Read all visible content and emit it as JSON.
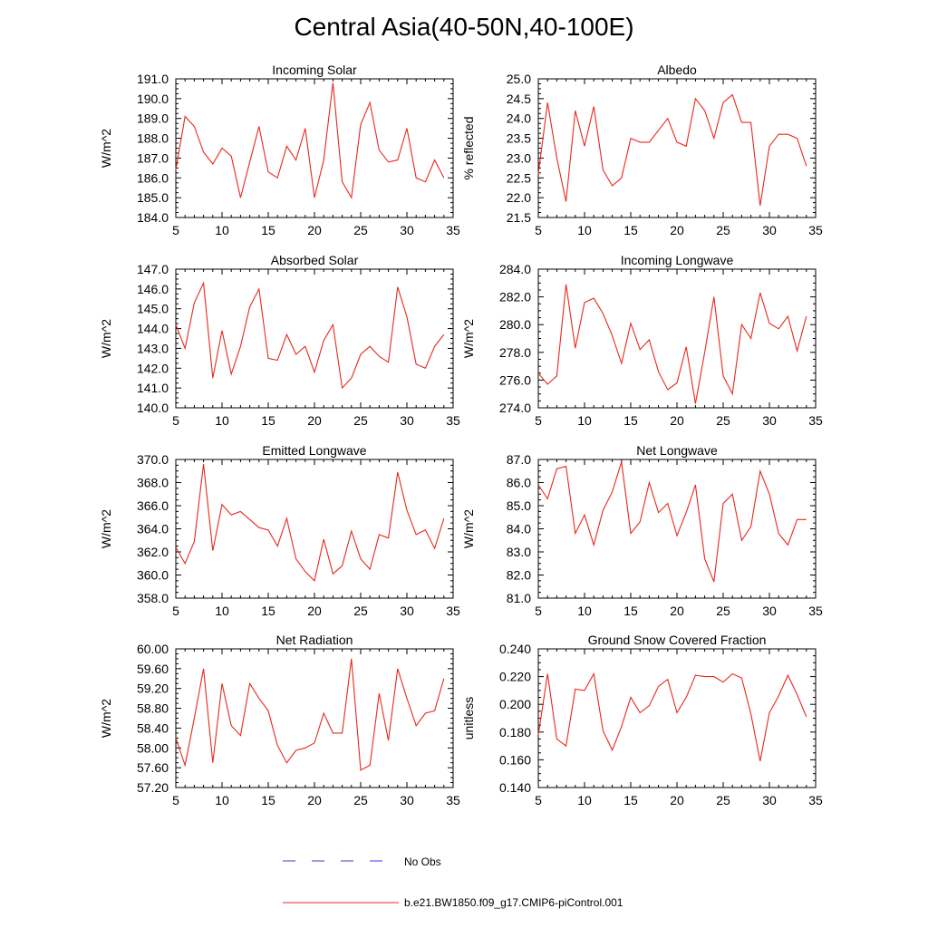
{
  "page": {
    "title": "Central Asia(40-50N,40-100E)"
  },
  "legend": [
    {
      "label": "No Obs",
      "color": "#3b3bd6",
      "style": "dashed"
    },
    {
      "label": "b.e21.BW1850.f09_g17.CMIP6-piControl.001",
      "color": "#e8281e",
      "style": "solid"
    }
  ],
  "chart_data": [
    {
      "type": "line",
      "title": "Incoming Solar",
      "ylabel": "W/m^2",
      "xlim": [
        5,
        35
      ],
      "xticks": [
        5,
        10,
        15,
        20,
        25,
        30,
        35
      ],
      "ylim": [
        184.0,
        191.0
      ],
      "yticks": [
        "184.0",
        "185.0",
        "186.0",
        "187.0",
        "188.0",
        "189.0",
        "190.0",
        "191.0"
      ],
      "series": [
        {
          "color": "#e8281e",
          "x": [
            5,
            6,
            7,
            8,
            9,
            10,
            11,
            12,
            13,
            14,
            15,
            16,
            17,
            18,
            19,
            20,
            21,
            22,
            23,
            24,
            25,
            26,
            27,
            28,
            29,
            30,
            31,
            32,
            33,
            34
          ],
          "y": [
            186.4,
            189.1,
            188.6,
            187.3,
            186.7,
            187.5,
            187.1,
            185.0,
            186.8,
            188.6,
            186.3,
            186.0,
            187.6,
            186.9,
            188.5,
            185.0,
            186.9,
            190.8,
            185.8,
            185.0,
            188.7,
            189.8,
            187.4,
            186.8,
            186.9,
            188.5,
            186.0,
            185.8,
            186.9,
            186.0
          ]
        }
      ]
    },
    {
      "type": "line",
      "title": "Albedo",
      "ylabel": "% reflected",
      "xlim": [
        5,
        35
      ],
      "xticks": [
        5,
        10,
        15,
        20,
        25,
        30,
        35
      ],
      "ylim": [
        21.5,
        25.0
      ],
      "yticks": [
        "21.5",
        "22.0",
        "22.5",
        "23.0",
        "23.5",
        "24.0",
        "24.5",
        "25.0"
      ],
      "series": [
        {
          "color": "#e8281e",
          "x": [
            5,
            6,
            7,
            8,
            9,
            10,
            11,
            12,
            13,
            14,
            15,
            16,
            17,
            18,
            19,
            20,
            21,
            22,
            23,
            24,
            25,
            26,
            27,
            28,
            29,
            30,
            31,
            32,
            33,
            34
          ],
          "y": [
            22.6,
            24.4,
            23.0,
            21.9,
            24.2,
            23.3,
            24.3,
            22.7,
            22.3,
            22.5,
            23.5,
            23.4,
            23.4,
            23.7,
            24.0,
            23.4,
            23.3,
            24.5,
            24.2,
            23.5,
            24.4,
            24.6,
            23.9,
            23.9,
            21.8,
            23.3,
            23.6,
            23.6,
            23.5,
            22.8
          ]
        }
      ]
    },
    {
      "type": "line",
      "title": "Absorbed Solar",
      "ylabel": "W/m^2",
      "xlim": [
        5,
        35
      ],
      "xticks": [
        5,
        10,
        15,
        20,
        25,
        30,
        35
      ],
      "ylim": [
        140.0,
        147.0
      ],
      "yticks": [
        "140.0",
        "141.0",
        "142.0",
        "143.0",
        "144.0",
        "145.0",
        "146.0",
        "147.0"
      ],
      "series": [
        {
          "color": "#e8281e",
          "x": [
            5,
            6,
            7,
            8,
            9,
            10,
            11,
            12,
            13,
            14,
            15,
            16,
            17,
            18,
            19,
            20,
            21,
            22,
            23,
            24,
            25,
            26,
            27,
            28,
            29,
            30,
            31,
            32,
            33,
            34
          ],
          "y": [
            144.2,
            143.0,
            145.3,
            146.3,
            141.5,
            143.9,
            141.7,
            143.1,
            145.1,
            146.0,
            142.5,
            142.4,
            143.7,
            142.7,
            143.1,
            141.8,
            143.4,
            144.2,
            141.0,
            141.5,
            142.7,
            143.1,
            142.6,
            142.3,
            146.1,
            144.6,
            142.2,
            142.0,
            143.1,
            143.7
          ]
        }
      ]
    },
    {
      "type": "line",
      "title": "Incoming Longwave",
      "ylabel": "W/m^2",
      "xlim": [
        5,
        35
      ],
      "xticks": [
        5,
        10,
        15,
        20,
        25,
        30,
        35
      ],
      "ylim": [
        274.0,
        284.0
      ],
      "yticks": [
        "274.0",
        "276.0",
        "278.0",
        "280.0",
        "282.0",
        "284.0"
      ],
      "series": [
        {
          "color": "#e8281e",
          "x": [
            5,
            6,
            7,
            8,
            9,
            10,
            11,
            12,
            13,
            14,
            15,
            16,
            17,
            18,
            19,
            20,
            21,
            22,
            23,
            24,
            25,
            26,
            27,
            28,
            29,
            30,
            31,
            32,
            33,
            34
          ],
          "y": [
            276.5,
            275.7,
            276.3,
            282.9,
            278.3,
            281.6,
            281.9,
            280.8,
            279.2,
            277.2,
            280.1,
            278.2,
            278.9,
            276.6,
            275.3,
            275.8,
            278.4,
            274.3,
            278.0,
            282.0,
            276.3,
            275.0,
            280.0,
            279.0,
            282.3,
            280.1,
            279.7,
            280.6,
            278.1,
            280.6
          ]
        }
      ]
    },
    {
      "type": "line",
      "title": "Emitted Longwave",
      "ylabel": "W/m^2",
      "xlim": [
        5,
        35
      ],
      "xticks": [
        5,
        10,
        15,
        20,
        25,
        30,
        35
      ],
      "ylim": [
        358.0,
        370.0
      ],
      "yticks": [
        "358.0",
        "360.0",
        "362.0",
        "364.0",
        "366.0",
        "368.0",
        "370.0"
      ],
      "series": [
        {
          "color": "#e8281e",
          "x": [
            5,
            6,
            7,
            8,
            9,
            10,
            11,
            12,
            13,
            14,
            15,
            16,
            17,
            18,
            19,
            20,
            21,
            22,
            23,
            24,
            25,
            26,
            27,
            28,
            29,
            30,
            31,
            32,
            33,
            34
          ],
          "y": [
            362.4,
            361.0,
            362.9,
            369.6,
            362.1,
            366.1,
            365.2,
            365.5,
            364.8,
            364.1,
            363.9,
            362.5,
            364.9,
            361.4,
            360.3,
            359.5,
            363.1,
            360.1,
            360.8,
            363.8,
            361.4,
            360.5,
            363.5,
            363.2,
            368.9,
            365.6,
            363.5,
            363.9,
            362.3,
            364.9
          ]
        }
      ]
    },
    {
      "type": "line",
      "title": "Net Longwave",
      "ylabel": "W/m^2",
      "xlim": [
        5,
        35
      ],
      "xticks": [
        5,
        10,
        15,
        20,
        25,
        30,
        35
      ],
      "ylim": [
        81.0,
        87.0
      ],
      "yticks": [
        "81.0",
        "82.0",
        "83.0",
        "84.0",
        "85.0",
        "86.0",
        "87.0"
      ],
      "series": [
        {
          "color": "#e8281e",
          "x": [
            5,
            6,
            7,
            8,
            9,
            10,
            11,
            12,
            13,
            14,
            15,
            16,
            17,
            18,
            19,
            20,
            21,
            22,
            23,
            24,
            25,
            26,
            27,
            28,
            29,
            30,
            31,
            32,
            33,
            34
          ],
          "y": [
            85.9,
            85.3,
            86.6,
            86.7,
            83.8,
            84.6,
            83.3,
            84.8,
            85.6,
            86.9,
            83.8,
            84.3,
            86.0,
            84.7,
            85.1,
            83.7,
            84.7,
            85.9,
            82.7,
            81.7,
            85.1,
            85.5,
            83.5,
            84.1,
            86.5,
            85.5,
            83.8,
            83.3,
            84.4,
            84.4
          ]
        }
      ]
    },
    {
      "type": "line",
      "title": "Net Radiation",
      "ylabel": "W/m^2",
      "xlim": [
        5,
        35
      ],
      "xticks": [
        5,
        10,
        15,
        20,
        25,
        30,
        35
      ],
      "ylim": [
        57.2,
        60.0
      ],
      "yticks": [
        "57.20",
        "57.60",
        "58.00",
        "58.40",
        "58.80",
        "59.20",
        "59.60",
        "60.00"
      ],
      "series": [
        {
          "color": "#e8281e",
          "x": [
            5,
            6,
            7,
            8,
            9,
            10,
            11,
            12,
            13,
            14,
            15,
            16,
            17,
            18,
            19,
            20,
            21,
            22,
            23,
            24,
            25,
            26,
            27,
            28,
            29,
            30,
            31,
            32,
            33,
            34
          ],
          "y": [
            58.2,
            57.65,
            58.6,
            59.6,
            57.7,
            59.3,
            58.45,
            58.25,
            59.3,
            59.0,
            58.75,
            58.05,
            57.7,
            57.95,
            58.0,
            58.1,
            58.7,
            58.3,
            58.3,
            59.8,
            57.55,
            57.65,
            59.1,
            58.15,
            59.6,
            59.0,
            58.45,
            58.7,
            58.75,
            59.4
          ]
        }
      ]
    },
    {
      "type": "line",
      "title": "Ground Snow Covered Fraction",
      "ylabel": "unitless",
      "xlim": [
        5,
        35
      ],
      "xticks": [
        5,
        10,
        15,
        20,
        25,
        30,
        35
      ],
      "ylim": [
        0.14,
        0.24
      ],
      "yticks": [
        "0.140",
        "0.160",
        "0.180",
        "0.200",
        "0.220",
        "0.240"
      ],
      "series": [
        {
          "color": "#e8281e",
          "x": [
            5,
            6,
            7,
            8,
            9,
            10,
            11,
            12,
            13,
            14,
            15,
            16,
            17,
            18,
            19,
            20,
            21,
            22,
            23,
            24,
            25,
            26,
            27,
            28,
            29,
            30,
            31,
            32,
            33,
            34
          ],
          "y": [
            0.178,
            0.222,
            0.175,
            0.17,
            0.211,
            0.21,
            0.222,
            0.181,
            0.167,
            0.184,
            0.205,
            0.194,
            0.199,
            0.213,
            0.218,
            0.194,
            0.205,
            0.221,
            0.22,
            0.22,
            0.216,
            0.222,
            0.219,
            0.193,
            0.159,
            0.194,
            0.206,
            0.221,
            0.207,
            0.191
          ]
        }
      ]
    }
  ]
}
